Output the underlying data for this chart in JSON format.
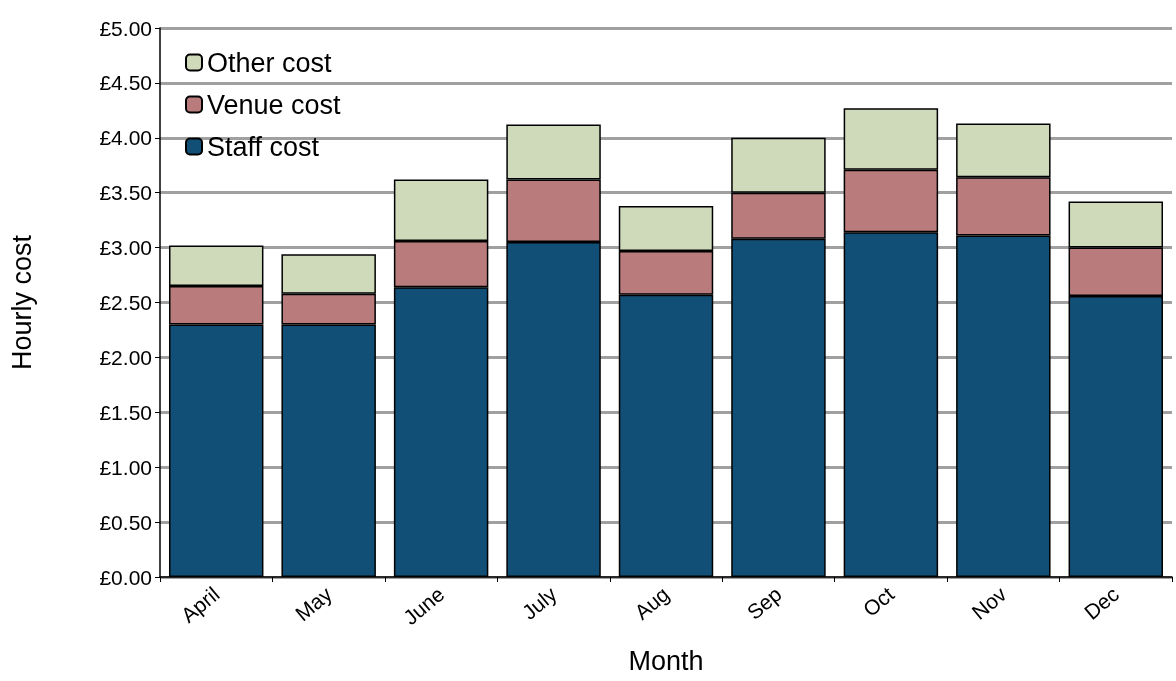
{
  "chart_data": {
    "type": "bar",
    "stacked": true,
    "xlabel": "Month",
    "ylabel": "Hourly cost",
    "categories": [
      "April",
      "May",
      "June",
      "July",
      "Aug",
      "Sep",
      "Oct",
      "Nov",
      "Dec"
    ],
    "series": [
      {
        "name": "Staff cost",
        "color": "#124f76",
        "values": [
          2.3,
          2.3,
          2.64,
          3.05,
          2.57,
          3.08,
          3.14,
          3.11,
          2.56
        ]
      },
      {
        "name": "Venue cost",
        "color": "#b97b7c",
        "values": [
          0.35,
          0.28,
          0.42,
          0.57,
          0.4,
          0.42,
          0.57,
          0.53,
          0.44
        ]
      },
      {
        "name": "Other cost",
        "color": "#cfdabb",
        "values": [
          0.37,
          0.36,
          0.56,
          0.5,
          0.41,
          0.5,
          0.56,
          0.49,
          0.42
        ]
      }
    ],
    "ylim": [
      0,
      5
    ],
    "yticks": [
      {
        "value": 0,
        "label": "£0.00"
      },
      {
        "value": 0.5,
        "label": "£0.50"
      },
      {
        "value": 1,
        "label": "£1.00"
      },
      {
        "value": 1.5,
        "label": "£1.50"
      },
      {
        "value": 2,
        "label": "£2.00"
      },
      {
        "value": 2.5,
        "label": "£2.50"
      },
      {
        "value": 3,
        "label": "£3.00"
      },
      {
        "value": 3.5,
        "label": "£3.50"
      },
      {
        "value": 4,
        "label": "£4.00"
      },
      {
        "value": 4.5,
        "label": "£4.50"
      },
      {
        "value": 5,
        "label": "£5.00"
      }
    ],
    "grid": "y",
    "legend": "top left"
  }
}
